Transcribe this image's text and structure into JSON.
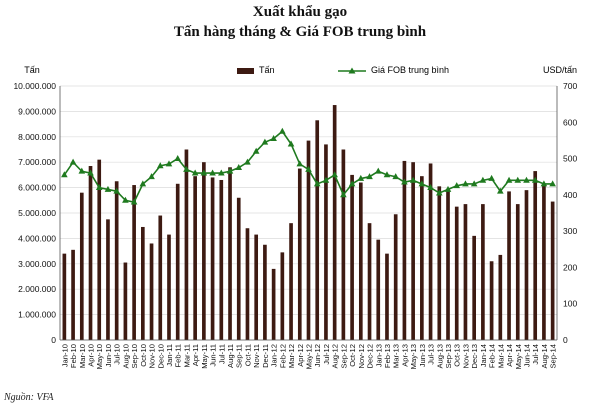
{
  "source": "Nguồn: VFA",
  "chart_data": {
    "type": "bar+line",
    "title": [
      "Xuất khẩu gạo",
      "Tấn hàng tháng & Giá FOB trung bình"
    ],
    "ylabel_left": "Tấn",
    "ylabel_right": "USD/tấn",
    "ylim_left": [
      0,
      10000000
    ],
    "ylim_right": [
      0,
      700
    ],
    "yticks_left": [
      "0",
      "1.000.000",
      "2.000.000",
      "3.000.000",
      "4.000.000",
      "5.000.000",
      "6.000.000",
      "7.000.000",
      "8.000.000",
      "9.000.000",
      "10.000.000"
    ],
    "yticks_right": [
      "0",
      "100",
      "200",
      "300",
      "400",
      "500",
      "600",
      "700"
    ],
    "grid": true,
    "legend": [
      "Tấn",
      "Giá FOB trung bình"
    ],
    "categories": [
      "Jan-10",
      "Feb-10",
      "Mar-10",
      "Apr-10",
      "May-10",
      "Jun-10",
      "Jul-10",
      "Aug-10",
      "Sep-10",
      "Oct-10",
      "Nov-10",
      "Dec-10",
      "Jan-11",
      "Feb-11",
      "Mar-11",
      "Apr-11",
      "May-11",
      "Jun-11",
      "Jul-11",
      "Aug-11",
      "Sep-11",
      "Oct-11",
      "Nov-11",
      "Dec-11",
      "Jan-12",
      "Feb-12",
      "Mar-12",
      "Apr-12",
      "May-12",
      "Jun-12",
      "Jul-12",
      "Aug-12",
      "Sep-12",
      "Oct-12",
      "Nov-12",
      "Dec-12",
      "Jan-13",
      "Feb-13",
      "Mar-13",
      "Apr-13",
      "May-13",
      "Jun-13",
      "Jul-13",
      "Aug-13",
      "Sep-13",
      "Oct-13",
      "Nov-13",
      "Dec-13",
      "Jan-14",
      "Feb-14",
      "Mar-14",
      "Apr-14",
      "May-14",
      "Jun-14",
      "Jul-14",
      "Aug-14",
      "Sep-14"
    ],
    "series": [
      {
        "name": "Tấn",
        "kind": "bar",
        "axis": "left",
        "color": "#3d1a12",
        "values": [
          3400000,
          3550000,
          5800000,
          6850000,
          7100000,
          4750000,
          6250000,
          3050000,
          6100000,
          4450000,
          3800000,
          4900000,
          4150000,
          6150000,
          7500000,
          6450000,
          7000000,
          6400000,
          6300000,
          6800000,
          5600000,
          4400000,
          4150000,
          3750000,
          2800000,
          3450000,
          4600000,
          6750000,
          7850000,
          8650000,
          7700000,
          9250000,
          7500000,
          6500000,
          6200000,
          4600000,
          3950000,
          3400000,
          4950000,
          7050000,
          7000000,
          6450000,
          6950000,
          6050000,
          5950000,
          5250000,
          5350000,
          4100000,
          5350000,
          3100000,
          3350000,
          5850000,
          5350000,
          5900000,
          6650000,
          6100000,
          5450000
        ]
      },
      {
        "name": "Giá FOB trung bình",
        "kind": "line",
        "axis": "right",
        "color": "#1f7a1f",
        "values": [
          455,
          490,
          465,
          460,
          420,
          415,
          410,
          385,
          380,
          430,
          450,
          480,
          485,
          500,
          470,
          460,
          460,
          460,
          460,
          465,
          475,
          490,
          520,
          545,
          555,
          575,
          540,
          485,
          470,
          430,
          440,
          455,
          400,
          430,
          445,
          450,
          465,
          455,
          450,
          435,
          440,
          430,
          420,
          405,
          415,
          425,
          430,
          430,
          440,
          445,
          410,
          440,
          440,
          440,
          440,
          430,
          430
        ]
      }
    ]
  }
}
